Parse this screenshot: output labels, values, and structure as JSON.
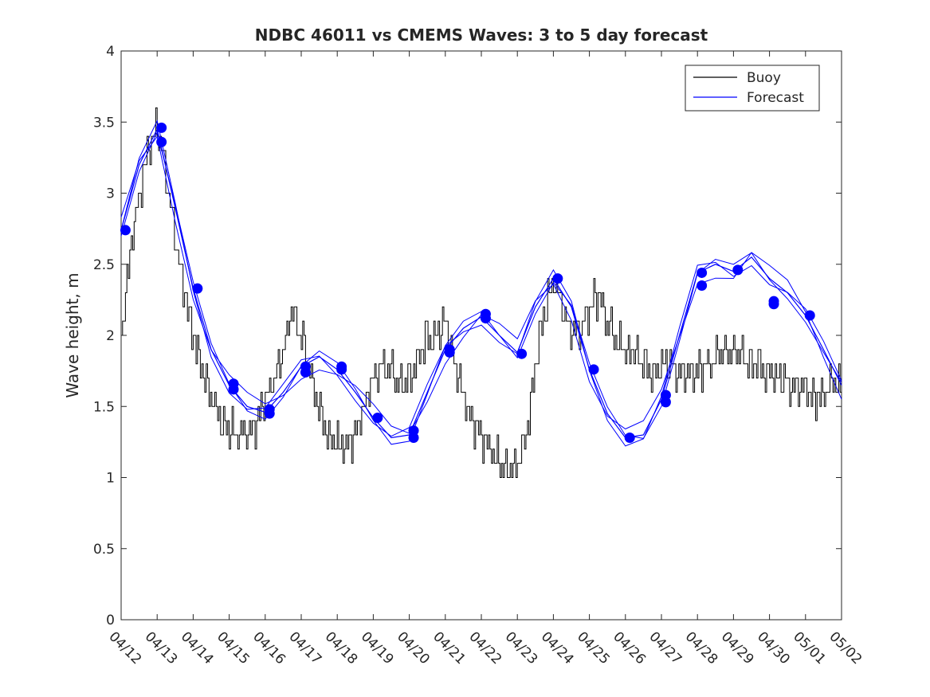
{
  "chart_data": {
    "type": "line",
    "title": "NDBC 46011 vs CMEMS Waves: 3 to 5 day forecast",
    "xlabel": "",
    "ylabel": "Wave height, m",
    "ylim": [
      0,
      4
    ],
    "yticks": [
      "0",
      "0.5",
      "1",
      "1.5",
      "2",
      "2.5",
      "3",
      "3.5",
      "4"
    ],
    "xticks": [
      "04/12",
      "04/13",
      "04/14",
      "04/15",
      "04/16",
      "04/17",
      "04/18",
      "04/19",
      "04/20",
      "04/21",
      "04/22",
      "04/23",
      "04/24",
      "04/25",
      "04/26",
      "04/27",
      "04/28",
      "04/29",
      "04/30",
      "05/01",
      "05/02"
    ],
    "grid": false,
    "legend_placement": "top-right",
    "colors": {
      "buoy": "#000000",
      "forecast": "#0000ff"
    },
    "series": [
      {
        "name": "Buoy",
        "x_days": [
          0,
          0.25,
          0.5,
          0.75,
          1,
          1.25,
          1.5,
          1.75,
          2,
          2.25,
          2.5,
          2.75,
          3,
          3.25,
          3.5,
          3.75,
          4,
          4.25,
          4.5,
          4.75,
          5,
          5.25,
          5.5,
          5.75,
          6,
          6.25,
          6.5,
          6.75,
          7,
          7.25,
          7.5,
          7.75,
          8,
          8.25,
          8.5,
          8.75,
          9,
          9.25,
          9.5,
          9.75,
          10,
          10.25,
          10.5,
          10.75,
          11,
          11.25,
          11.5,
          11.75,
          12,
          12.25,
          12.5,
          12.75,
          13,
          13.25,
          13.5,
          13.75,
          14,
          14.25,
          14.5,
          14.75,
          15,
          15.25,
          15.5,
          15.75,
          16,
          16.25,
          16.5,
          16.75,
          17,
          17.25,
          17.5,
          17.75,
          18,
          18.25,
          18.5,
          18.75,
          19,
          19.25,
          19.5,
          19.75,
          20
        ],
        "values": [
          2.0,
          2.6,
          3.0,
          3.3,
          3.5,
          3.1,
          2.7,
          2.3,
          2.0,
          1.75,
          1.55,
          1.4,
          1.35,
          1.3,
          1.3,
          1.4,
          1.55,
          1.7,
          1.9,
          2.2,
          2.0,
          1.75,
          1.45,
          1.3,
          1.25,
          1.2,
          1.3,
          1.5,
          1.7,
          1.8,
          1.75,
          1.65,
          1.7,
          1.85,
          2.0,
          2.0,
          2.1,
          1.8,
          1.55,
          1.4,
          1.3,
          1.2,
          1.1,
          1.05,
          1.1,
          1.3,
          1.8,
          2.2,
          2.4,
          2.2,
          2.0,
          2.05,
          2.2,
          2.3,
          2.1,
          1.95,
          1.9,
          1.9,
          1.8,
          1.75,
          1.8,
          1.75,
          1.72,
          1.7,
          1.75,
          1.8,
          1.85,
          1.9,
          1.9,
          1.85,
          1.8,
          1.78,
          1.75,
          1.7,
          1.65,
          1.6,
          1.6,
          1.55,
          1.6,
          1.65,
          1.65
        ]
      },
      {
        "name": "Forecast",
        "x_days": [
          0,
          0.5,
          1,
          1.5,
          2,
          2.5,
          3,
          3.5,
          4,
          4.5,
          5,
          5.5,
          6,
          6.5,
          7,
          7.5,
          8,
          8.5,
          9,
          9.5,
          10,
          10.5,
          11,
          11.5,
          12,
          12.5,
          13,
          13.5,
          14,
          14.5,
          15,
          15.5,
          16,
          16.5,
          17,
          17.5,
          18,
          18.5,
          19,
          19.5,
          20
        ],
        "values": [
          2.74,
          3.2,
          3.45,
          2.9,
          2.33,
          1.9,
          1.65,
          1.5,
          1.46,
          1.6,
          1.78,
          1.85,
          1.76,
          1.6,
          1.42,
          1.28,
          1.3,
          1.6,
          1.9,
          2.05,
          2.13,
          2.0,
          1.88,
          2.2,
          2.4,
          2.2,
          1.76,
          1.45,
          1.28,
          1.3,
          1.55,
          2.0,
          2.44,
          2.5,
          2.45,
          2.55,
          2.4,
          2.3,
          2.14,
          1.9,
          1.65
        ]
      }
    ],
    "forecast_markers": {
      "x_days": [
        0.12,
        1.12,
        1.12,
        2.12,
        3.12,
        3.12,
        4.12,
        4.12,
        5.12,
        5.12,
        6.12,
        6.12,
        7.12,
        8.12,
        8.12,
        9.12,
        9.12,
        10.12,
        10.12,
        11.12,
        12.12,
        13.12,
        14.12,
        15.12,
        15.12,
        16.12,
        16.12,
        17.12,
        18.12,
        18.12,
        19.12
      ],
      "values": [
        2.74,
        3.46,
        3.36,
        2.33,
        1.66,
        1.62,
        1.48,
        1.45,
        1.78,
        1.74,
        1.78,
        1.76,
        1.42,
        1.33,
        1.28,
        1.88,
        1.9,
        2.15,
        2.12,
        1.87,
        2.4,
        1.76,
        1.28,
        1.58,
        1.53,
        2.44,
        2.35,
        2.46,
        2.24,
        2.22,
        2.14
      ]
    }
  }
}
